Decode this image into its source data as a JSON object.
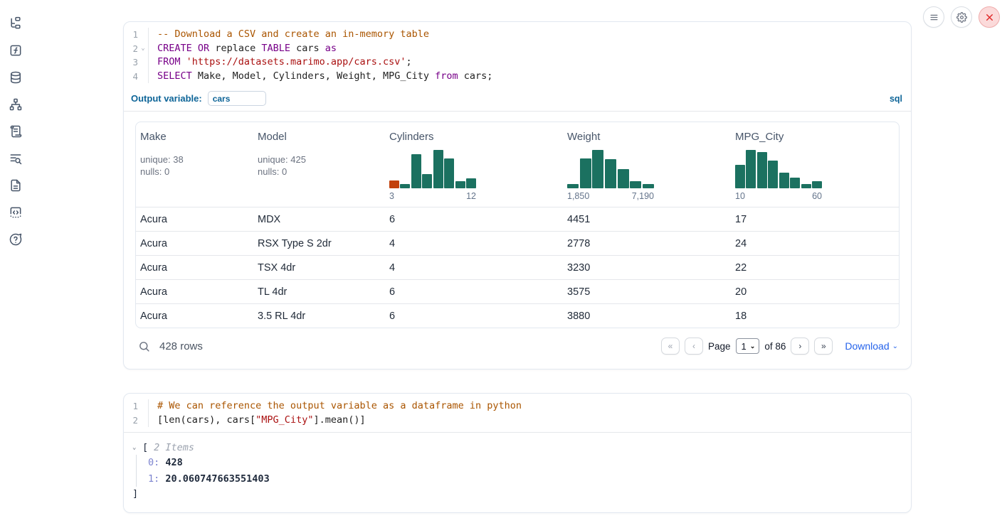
{
  "colors": {
    "accent_blue": "#0e6598",
    "link_blue": "#2563eb",
    "hist_teal": "#1b7160",
    "hist_orange": "#c2410c",
    "keyword": "#770088",
    "comment": "#aa5500",
    "string": "#aa1111",
    "close_red": "#e02d2d"
  },
  "sidebar": {
    "items": [
      {
        "icon": "file-tree-icon"
      },
      {
        "icon": "function-square-icon"
      },
      {
        "icon": "database-icon"
      },
      {
        "icon": "dependency-graph-icon"
      },
      {
        "icon": "scroll-logs-icon"
      },
      {
        "icon": "text-search-icon"
      },
      {
        "icon": "documentation-icon"
      },
      {
        "icon": "snippets-code-icon"
      },
      {
        "icon": "help-chat-icon"
      }
    ]
  },
  "window_controls": {
    "menu": "menu-icon",
    "settings": "gear-icon",
    "close": "close-icon"
  },
  "cells": {
    "sql": {
      "lines": [
        {
          "no": "1",
          "fold": false,
          "tokens": [
            {
              "t": "comment",
              "s": "-- Download a CSV and create an in-memory table"
            }
          ]
        },
        {
          "no": "2",
          "fold": true,
          "tokens": [
            {
              "t": "keyword",
              "s": "CREATE"
            },
            {
              "t": "plain",
              "s": " "
            },
            {
              "t": "keyword",
              "s": "OR"
            },
            {
              "t": "plain",
              "s": " replace "
            },
            {
              "t": "keyword",
              "s": "TABLE"
            },
            {
              "t": "plain",
              "s": " cars "
            },
            {
              "t": "keyword",
              "s": "as"
            }
          ]
        },
        {
          "no": "3",
          "fold": false,
          "tokens": [
            {
              "t": "keyword",
              "s": "FROM"
            },
            {
              "t": "plain",
              "s": " "
            },
            {
              "t": "string",
              "s": "'https://datasets.marimo.app/cars.csv'"
            },
            {
              "t": "plain",
              "s": ";"
            }
          ]
        },
        {
          "no": "4",
          "fold": false,
          "tokens": [
            {
              "t": "keyword",
              "s": "SELECT"
            },
            {
              "t": "plain",
              "s": " Make, Model, Cylinders, Weight, MPG_City "
            },
            {
              "t": "keyword",
              "s": "from"
            },
            {
              "t": "plain",
              "s": " cars;"
            }
          ]
        }
      ],
      "output_variable_label": "Output variable:",
      "output_variable_value": "cars",
      "language_badge": "sql",
      "table": {
        "columns": [
          {
            "label": "Make",
            "stats": [
              "unique: 38",
              "nulls: 0"
            ]
          },
          {
            "label": "Model",
            "stats": [
              "unique: 425",
              "nulls: 0"
            ]
          },
          {
            "label": "Cylinders",
            "histogram": {
              "type": "bar",
              "values": [
                0.2,
                0.11,
                0.88,
                0.37,
                1.0,
                0.78,
                0.18,
                0.26
              ],
              "first_bar_color": "#c2410c",
              "bar_color": "#1b7160",
              "min_label": "3",
              "max_label": "12"
            }
          },
          {
            "label": "Weight",
            "histogram": {
              "type": "bar",
              "values": [
                0.12,
                0.78,
                1.0,
                0.76,
                0.5,
                0.18,
                0.12
              ],
              "bar_color": "#1b7160",
              "min_label": "1,850",
              "max_label": "7,190"
            }
          },
          {
            "label": "MPG_City",
            "histogram": {
              "type": "bar",
              "values": [
                0.62,
                1.0,
                0.94,
                0.72,
                0.4,
                0.28,
                0.11,
                0.18
              ],
              "bar_color": "#1b7160",
              "min_label": "10",
              "max_label": "60"
            }
          }
        ],
        "rows": [
          [
            "Acura",
            "MDX",
            "6",
            "4451",
            "17"
          ],
          [
            "Acura",
            "RSX Type S 2dr",
            "4",
            "2778",
            "24"
          ],
          [
            "Acura",
            "TSX 4dr",
            "4",
            "3230",
            "22"
          ],
          [
            "Acura",
            "TL 4dr",
            "6",
            "3575",
            "20"
          ],
          [
            "Acura",
            "3.5 RL 4dr",
            "6",
            "3880",
            "18"
          ]
        ],
        "footer": {
          "row_count": "428 rows",
          "first_glyph": "«",
          "prev_glyph": "‹",
          "next_glyph": "›",
          "last_glyph": "»",
          "page_label": "Page",
          "page_value": "1",
          "of_label": "of 86",
          "download_label": "Download"
        }
      }
    },
    "python": {
      "lines": [
        {
          "no": "1",
          "fold": false,
          "tokens": [
            {
              "t": "comment",
              "s": "# We can reference the output variable as a dataframe in python"
            }
          ]
        },
        {
          "no": "2",
          "fold": false,
          "tokens": [
            {
              "t": "plain",
              "s": "[len(cars), cars["
            },
            {
              "t": "string",
              "s": "\"MPG_City\""
            },
            {
              "t": "plain",
              "s": "].mean()]"
            }
          ]
        }
      ],
      "output_tree": {
        "open_bracket": "[",
        "items_label": "2 Items",
        "entries": [
          {
            "key": "0:",
            "value": "428"
          },
          {
            "key": "1:",
            "value": "20.060747663551403"
          }
        ],
        "close_bracket": "]"
      }
    }
  }
}
